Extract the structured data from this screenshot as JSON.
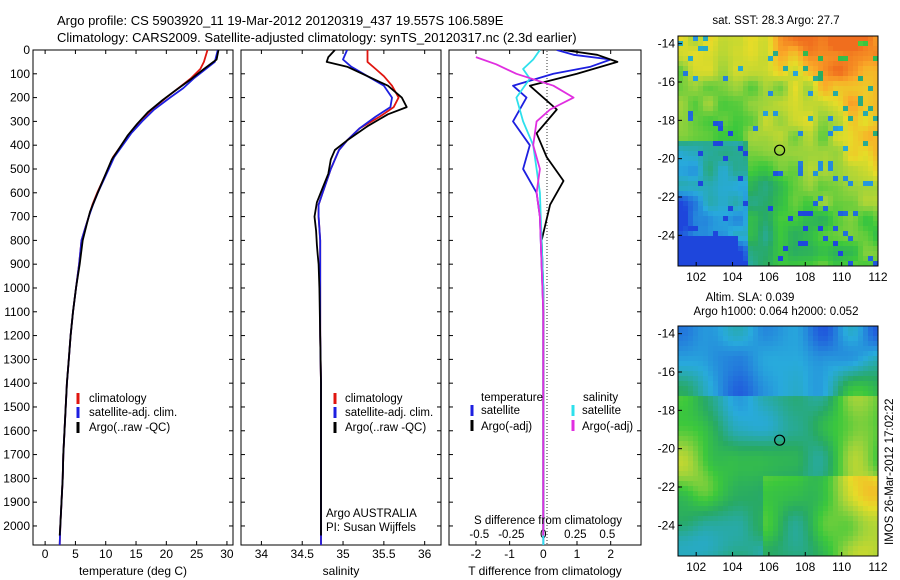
{
  "title": {
    "line1": "Argo profile: CS 5903920_11 19-Mar-2012 20120319_437 19.557S 106.589E",
    "line2": "Climatology: CARS2009. Satellite-adjusted climatology: synTS_20120317.nc (2.3d earlier)"
  },
  "colors": {
    "red": "#e0150f",
    "blue": "#1d1fe0",
    "black": "#000000",
    "cyan": "#2ee0ec",
    "magenta": "#e02ee0"
  },
  "chart_data": [
    {
      "type": "line",
      "id": "temperature",
      "xlabel": "temperature (deg C)",
      "ylabel": "",
      "xlim": [
        -2,
        31
      ],
      "ylim": [
        2080,
        0
      ],
      "xticks": [
        0,
        5,
        10,
        15,
        20,
        25,
        30
      ],
      "yticks": [
        0,
        100,
        200,
        300,
        400,
        500,
        600,
        700,
        800,
        900,
        1000,
        1100,
        1200,
        1300,
        1400,
        1500,
        1600,
        1700,
        1800,
        1900,
        2000
      ],
      "legend": [
        "climatology",
        "satellite-adj. clim.",
        "Argo(..raw -QC)"
      ],
      "series": [
        {
          "name": "climatology",
          "color": "red",
          "points": [
            [
              26.8,
              0
            ],
            [
              26.2,
              50
            ],
            [
              25.6,
              80
            ],
            [
              24.0,
              120
            ],
            [
              22.0,
              160
            ],
            [
              20.0,
              200
            ],
            [
              17.6,
              250
            ],
            [
              15.6,
              300
            ],
            [
              14.0,
              350
            ],
            [
              12.6,
              400
            ],
            [
              11.2,
              450
            ],
            [
              10.4,
              500
            ],
            [
              9.5,
              550
            ],
            [
              8.6,
              600
            ],
            [
              7.8,
              650
            ],
            [
              7.2,
              700
            ],
            [
              6.6,
              750
            ],
            [
              6.0,
              800
            ],
            [
              5.6,
              900
            ],
            [
              5.1,
              1000
            ],
            [
              4.6,
              1100
            ],
            [
              4.2,
              1200
            ],
            [
              3.9,
              1300
            ],
            [
              3.6,
              1400
            ],
            [
              3.4,
              1500
            ],
            [
              3.2,
              1600
            ],
            [
              3.0,
              1700
            ],
            [
              2.9,
              1800
            ],
            [
              2.7,
              1900
            ],
            [
              2.5,
              2000
            ],
            [
              2.4,
              2080
            ]
          ]
        },
        {
          "name": "satellite-adj. clim.",
          "color": "blue",
          "points": [
            [
              28.5,
              0
            ],
            [
              28.0,
              50
            ],
            [
              26.0,
              90
            ],
            [
              24.5,
              120
            ],
            [
              22.8,
              160
            ],
            [
              20.6,
              200
            ],
            [
              18.0,
              250
            ],
            [
              16.0,
              300
            ],
            [
              14.2,
              350
            ],
            [
              12.8,
              400
            ],
            [
              11.4,
              450
            ],
            [
              10.5,
              500
            ],
            [
              9.6,
              550
            ],
            [
              8.7,
              600
            ],
            [
              7.9,
              650
            ],
            [
              7.2,
              700
            ],
            [
              6.6,
              750
            ],
            [
              6.0,
              800
            ],
            [
              5.6,
              900
            ],
            [
              5.1,
              1000
            ],
            [
              4.6,
              1100
            ],
            [
              4.2,
              1200
            ],
            [
              3.9,
              1300
            ],
            [
              3.6,
              1400
            ],
            [
              3.4,
              1500
            ],
            [
              3.2,
              1600
            ],
            [
              3.0,
              1700
            ],
            [
              2.9,
              1800
            ],
            [
              2.7,
              1900
            ],
            [
              2.5,
              2000
            ],
            [
              2.4,
              2080
            ]
          ]
        },
        {
          "name": "Argo(..raw -QC)",
          "color": "black",
          "points": [
            [
              28.6,
              0
            ],
            [
              28.3,
              40
            ],
            [
              26.2,
              80
            ],
            [
              24.2,
              120
            ],
            [
              21.5,
              170
            ],
            [
              19.4,
              210
            ],
            [
              17.0,
              260
            ],
            [
              15.2,
              310
            ],
            [
              13.6,
              360
            ],
            [
              12.3,
              410
            ],
            [
              11.0,
              460
            ],
            [
              10.0,
              520
            ],
            [
              9.0,
              580
            ],
            [
              8.2,
              630
            ],
            [
              7.4,
              680
            ],
            [
              6.9,
              730
            ],
            [
              6.2,
              800
            ],
            [
              5.7,
              900
            ],
            [
              5.1,
              1000
            ],
            [
              4.6,
              1100
            ],
            [
              4.2,
              1200
            ],
            [
              3.9,
              1300
            ],
            [
              3.6,
              1400
            ],
            [
              3.4,
              1500
            ],
            [
              3.2,
              1600
            ],
            [
              3.0,
              1700
            ],
            [
              2.9,
              1800
            ],
            [
              2.7,
              1900
            ],
            [
              2.5,
              2000
            ],
            [
              2.4,
              2040
            ]
          ]
        }
      ]
    },
    {
      "type": "line",
      "id": "salinity",
      "xlabel": "salinity",
      "xlim": [
        33.75,
        36.2
      ],
      "ylim": [
        2080,
        0
      ],
      "xticks": [
        34,
        34.5,
        35,
        35.5,
        36
      ],
      "xticklabels": [
        "34",
        "34.5",
        "35",
        "35.5",
        "36"
      ],
      "legend": [
        "climatology",
        "satellite-adj. clim.",
        "Argo(..raw -QC)"
      ],
      "annotations": [
        "Argo AUSTRALIA",
        "PI: Susan Wijffels"
      ],
      "series": [
        {
          "name": "climatology",
          "color": "red",
          "points": [
            [
              35.3,
              0
            ],
            [
              35.3,
              50
            ],
            [
              35.4,
              80
            ],
            [
              35.5,
              110
            ],
            [
              35.6,
              150
            ],
            [
              35.68,
              200
            ],
            [
              35.62,
              240
            ],
            [
              35.45,
              280
            ],
            [
              35.2,
              330
            ],
            [
              35.05,
              380
            ],
            [
              34.95,
              420
            ],
            [
              34.9,
              460
            ],
            [
              34.85,
              500
            ],
            [
              34.8,
              550
            ],
            [
              34.75,
              600
            ],
            [
              34.7,
              650
            ],
            [
              34.7,
              700
            ],
            [
              34.72,
              800
            ],
            [
              34.72,
              900
            ],
            [
              34.72,
              1000
            ],
            [
              34.72,
              1200
            ],
            [
              34.73,
              1400
            ],
            [
              34.73,
              1600
            ],
            [
              34.73,
              1800
            ],
            [
              34.73,
              2000
            ],
            [
              34.73,
              2080
            ]
          ]
        },
        {
          "name": "satellite-adj. clim.",
          "color": "blue",
          "points": [
            [
              35.05,
              0
            ],
            [
              35.0,
              40
            ],
            [
              35.1,
              70
            ],
            [
              35.3,
              110
            ],
            [
              35.5,
              150
            ],
            [
              35.6,
              200
            ],
            [
              35.58,
              240
            ],
            [
              35.4,
              280
            ],
            [
              35.2,
              330
            ],
            [
              35.05,
              380
            ],
            [
              34.95,
              420
            ],
            [
              34.9,
              460
            ],
            [
              34.85,
              500
            ],
            [
              34.8,
              550
            ],
            [
              34.75,
              600
            ],
            [
              34.7,
              650
            ],
            [
              34.7,
              700
            ],
            [
              34.72,
              800
            ],
            [
              34.72,
              900
            ],
            [
              34.72,
              1000
            ],
            [
              34.72,
              1200
            ],
            [
              34.73,
              1400
            ],
            [
              34.73,
              1600
            ],
            [
              34.73,
              1800
            ],
            [
              34.73,
              2000
            ],
            [
              34.73,
              2080
            ]
          ]
        },
        {
          "name": "Argo(..raw -QC)",
          "color": "black",
          "points": [
            [
              34.9,
              0
            ],
            [
              34.82,
              30
            ],
            [
              34.8,
              50
            ],
            [
              35.05,
              70
            ],
            [
              35.3,
              110
            ],
            [
              35.55,
              150
            ],
            [
              35.72,
              200
            ],
            [
              35.78,
              240
            ],
            [
              35.55,
              270
            ],
            [
              35.3,
              320
            ],
            [
              35.05,
              380
            ],
            [
              34.9,
              420
            ],
            [
              34.85,
              460
            ],
            [
              34.82,
              520
            ],
            [
              34.75,
              580
            ],
            [
              34.68,
              640
            ],
            [
              34.65,
              700
            ],
            [
              34.67,
              760
            ],
            [
              34.68,
              820
            ],
            [
              34.69,
              860
            ],
            [
              34.7,
              900
            ],
            [
              34.71,
              1000
            ],
            [
              34.72,
              1200
            ],
            [
              34.73,
              1400
            ],
            [
              34.73,
              1600
            ],
            [
              34.73,
              1800
            ],
            [
              34.73,
              2000
            ],
            [
              34.73,
              2040
            ]
          ]
        }
      ]
    },
    {
      "type": "line",
      "id": "difference",
      "xlabel": "T difference from climatology",
      "xlabel_top": "S difference from climatology",
      "xlim": [
        -2.8,
        2.9
      ],
      "ylim": [
        2080,
        0
      ],
      "xticks": [
        -2,
        -1,
        0,
        1,
        2
      ],
      "s_xticks": [
        -0.5,
        -0.25,
        0,
        0.25,
        0.5
      ],
      "s_xticklabels": [
        "-0.5",
        "-0.25",
        "0",
        "0.25",
        "0.5"
      ],
      "legend_temperature_title": "temperature",
      "legend_salinity_title": "salinity",
      "legend_temperature": [
        "satellite",
        "Argo(-adj)"
      ],
      "legend_salinity": [
        "satellite",
        "Argo(-adj)"
      ],
      "series": [
        {
          "name": "temperature satellite",
          "color": "blue",
          "points": [
            [
              0.4,
              0
            ],
            [
              0.9,
              20
            ],
            [
              2.0,
              40
            ],
            [
              1.4,
              70
            ],
            [
              0.3,
              100
            ],
            [
              -0.9,
              150
            ],
            [
              -0.5,
              200
            ],
            [
              -0.9,
              300
            ],
            [
              -0.4,
              400
            ],
            [
              -0.6,
              500
            ],
            [
              -0.2,
              600
            ],
            [
              -0.1,
              700
            ],
            [
              -0.05,
              900
            ],
            [
              0,
              1100
            ],
            [
              0,
              2080
            ]
          ]
        },
        {
          "name": "temperature Argo(-adj)",
          "color": "black",
          "points": [
            [
              0.6,
              0
            ],
            [
              1.6,
              20
            ],
            [
              2.2,
              50
            ],
            [
              1.0,
              100
            ],
            [
              -0.4,
              150
            ],
            [
              0.4,
              250
            ],
            [
              -0.2,
              350
            ],
            [
              0.1,
              450
            ],
            [
              0.6,
              550
            ],
            [
              0.2,
              650
            ],
            [
              -0.05,
              800
            ],
            [
              0,
              1000
            ],
            [
              0,
              2040
            ]
          ]
        },
        {
          "name": "salinity satellite",
          "color": "cyan",
          "points": [
            [
              -0.1,
              0
            ],
            [
              -0.3,
              40
            ],
            [
              -0.6,
              80
            ],
            [
              -0.4,
              120
            ],
            [
              -0.8,
              200
            ],
            [
              -0.6,
              300
            ],
            [
              -0.3,
              400
            ],
            [
              -0.2,
              500
            ],
            [
              -0.1,
              600
            ],
            [
              -0.05,
              800
            ],
            [
              0,
              1000
            ],
            [
              0,
              2080
            ]
          ]
        },
        {
          "name": "salinity Argo(-adj)",
          "color": "magenta",
          "points": [
            [
              -2.0,
              30
            ],
            [
              -1.4,
              60
            ],
            [
              -0.8,
              100
            ],
            [
              0.3,
              150
            ],
            [
              0.9,
              200
            ],
            [
              0.2,
              250
            ],
            [
              -0.2,
              300
            ],
            [
              -0.3,
              400
            ],
            [
              -0.1,
              500
            ],
            [
              -0.2,
              600
            ],
            [
              -0.1,
              700
            ],
            [
              -0.05,
              900
            ],
            [
              0,
              1100
            ],
            [
              0,
              2040
            ]
          ]
        }
      ]
    }
  ],
  "maps": [
    {
      "id": "sst",
      "title": "sat. SST: 28.3 Argo: 27.7",
      "xticks": [
        102,
        104,
        106,
        108,
        110,
        112
      ],
      "yticks": [
        -14,
        -16,
        -18,
        -20,
        -22,
        -24
      ],
      "xlim": [
        101,
        112
      ],
      "ylim": [
        -25.6,
        -13.6
      ],
      "marker": [
        106.589,
        -19.557
      ]
    },
    {
      "id": "sla",
      "title_line1": "Altim. SLA: 0.039",
      "title_line2": "Argo h1000: 0.064 h2000: 0.052",
      "xticks": [
        102,
        104,
        106,
        108,
        110,
        112
      ],
      "yticks": [
        -14,
        -16,
        -18,
        -20,
        -22,
        -24
      ],
      "xlim": [
        101,
        112
      ],
      "ylim": [
        -25.6,
        -13.6
      ],
      "marker": [
        106.589,
        -19.557
      ]
    }
  ],
  "footer_stamp": "IMOS 26-Mar-2012 17:02:22"
}
